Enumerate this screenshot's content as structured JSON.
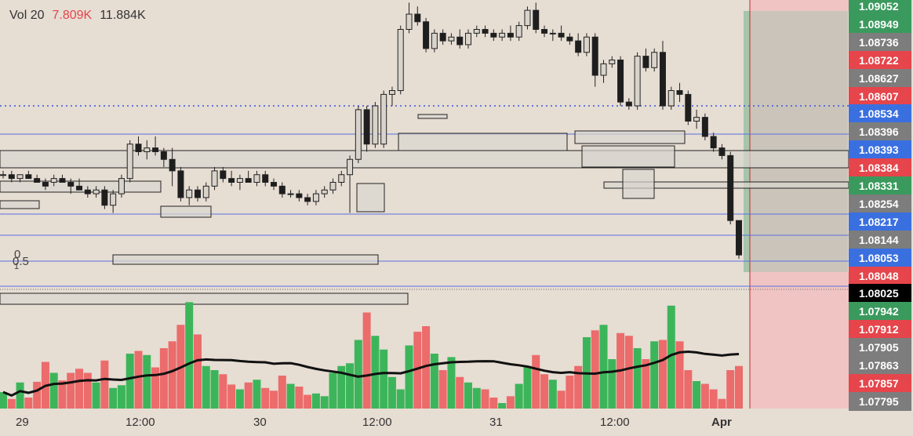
{
  "legend": {
    "name": "Vol 20",
    "v1": "7.809K",
    "v2": "11.884K"
  },
  "fib": {
    "a": "0",
    "b": "0.5",
    "c": "1"
  },
  "colors": {
    "up": "#3cb55a",
    "down": "#ec6b6b",
    "bg": "#e6ddd3"
  },
  "price_labels": [
    {
      "text": "1.09052",
      "color": "#3a9a5d"
    },
    {
      "text": "1.08949",
      "color": "#3a9a5d"
    },
    {
      "text": "1.08736",
      "color": "#7d7d7d"
    },
    {
      "text": "1.08722",
      "color": "#e5454b"
    },
    {
      "text": "1.08627",
      "color": "#7d7d7d"
    },
    {
      "text": "1.08607",
      "color": "#e5454b"
    },
    {
      "text": "1.08534",
      "color": "#3a6fe0"
    },
    {
      "text": "1.08396",
      "color": "#7d7d7d"
    },
    {
      "text": "1.08393",
      "color": "#3a6fe0"
    },
    {
      "text": "1.08384",
      "color": "#e5454b"
    },
    {
      "text": "1.08331",
      "color": "#3a9a5d"
    },
    {
      "text": "1.08254",
      "color": "#7d7d7d"
    },
    {
      "text": "1.08217",
      "color": "#3a6fe0"
    },
    {
      "text": "1.08144",
      "color": "#7d7d7d"
    },
    {
      "text": "1.08053",
      "color": "#3a6fe0"
    },
    {
      "text": "1.08048",
      "color": "#e5454b"
    },
    {
      "text": "1.08025",
      "color": "#000000"
    },
    {
      "text": "1.07942",
      "color": "#3a9a5d"
    },
    {
      "text": "1.07912",
      "color": "#e5454b"
    },
    {
      "text": "1.07905",
      "color": "#7d7d7d"
    },
    {
      "text": "1.07863",
      "color": "#7d7d7d"
    },
    {
      "text": "1.07857",
      "color": "#e5454b"
    },
    {
      "text": "1.07795",
      "color": "#7d7d7d"
    }
  ],
  "time_labels": [
    "29",
    "12:00",
    "30",
    "12:00",
    "31",
    "12:00",
    "Apr"
  ],
  "chart_data": {
    "type": "candlestick",
    "series": [
      {
        "name": "Price",
        "candles": [
          [
            1.0812,
            1.0813,
            1.0811,
            1.0812
          ],
          [
            1.0812,
            1.0813,
            1.081,
            1.0811
          ],
          [
            1.0811,
            1.0812,
            1.081,
            1.0812
          ],
          [
            1.0812,
            1.0813,
            1.0811,
            1.0811
          ],
          [
            1.0811,
            1.0812,
            1.081,
            1.081
          ],
          [
            1.081,
            1.0811,
            1.0808,
            1.0809
          ],
          [
            1.081,
            1.0812,
            1.0809,
            1.0811
          ],
          [
            1.0811,
            1.0812,
            1.081,
            1.081
          ],
          [
            1.081,
            1.0811,
            1.0807,
            1.0809
          ],
          [
            1.0809,
            1.0811,
            1.0808,
            1.0808
          ],
          [
            1.0808,
            1.0809,
            1.0806,
            1.0807
          ],
          [
            1.0807,
            1.0809,
            1.0806,
            1.0808
          ],
          [
            1.0808,
            1.0809,
            1.0803,
            1.0804
          ],
          [
            1.0804,
            1.0808,
            1.0802,
            1.0807
          ],
          [
            1.0807,
            1.0812,
            1.0806,
            1.0811
          ],
          [
            1.0811,
            1.0821,
            1.081,
            1.082
          ],
          [
            1.082,
            1.0822,
            1.0817,
            1.0818
          ],
          [
            1.0818,
            1.0821,
            1.0816,
            1.0819
          ],
          [
            1.0819,
            1.0822,
            1.0817,
            1.0818
          ],
          [
            1.0818,
            1.0819,
            1.0814,
            1.0816
          ],
          [
            1.0816,
            1.0819,
            1.0809,
            1.0813
          ],
          [
            1.0813,
            1.0814,
            1.0805,
            1.0806
          ],
          [
            1.0806,
            1.0809,
            1.0804,
            1.0808
          ],
          [
            1.0808,
            1.0809,
            1.0805,
            1.0806
          ],
          [
            1.0806,
            1.081,
            1.0805,
            1.0809
          ],
          [
            1.0809,
            1.0814,
            1.0808,
            1.0813
          ],
          [
            1.0813,
            1.0814,
            1.081,
            1.0811
          ],
          [
            1.0811,
            1.0813,
            1.0809,
            1.081
          ],
          [
            1.081,
            1.0812,
            1.0808,
            1.0811
          ],
          [
            1.0811,
            1.0813,
            1.081,
            1.081
          ],
          [
            1.081,
            1.0813,
            1.0809,
            1.0812
          ],
          [
            1.0812,
            1.0813,
            1.0809,
            1.081
          ],
          [
            1.081,
            1.0811,
            1.0808,
            1.0809
          ],
          [
            1.0809,
            1.081,
            1.0806,
            1.0807
          ],
          [
            1.0807,
            1.0808,
            1.0806,
            1.0807
          ],
          [
            1.0807,
            1.0808,
            1.0805,
            1.0806
          ],
          [
            1.0806,
            1.0807,
            1.0804,
            1.0805
          ],
          [
            1.0805,
            1.0808,
            1.0804,
            1.0807
          ],
          [
            1.0807,
            1.0809,
            1.0806,
            1.0808
          ],
          [
            1.0808,
            1.0811,
            1.0807,
            1.081
          ],
          [
            1.081,
            1.0813,
            1.0809,
            1.0812
          ],
          [
            1.0812,
            1.0817,
            1.0802,
            1.0816
          ],
          [
            1.0816,
            1.083,
            1.0815,
            1.0829
          ],
          [
            1.0829,
            1.083,
            1.0818,
            1.082
          ],
          [
            1.082,
            1.0831,
            1.0819,
            1.083
          ],
          [
            1.082,
            1.0834,
            1.0819,
            1.0833
          ],
          [
            1.0833,
            1.0835,
            1.083,
            1.0834
          ],
          [
            1.0834,
            1.0851,
            1.0833,
            1.085
          ],
          [
            1.085,
            1.0857,
            1.0849,
            1.0854
          ],
          [
            1.0854,
            1.0856,
            1.0851,
            1.0852
          ],
          [
            1.0852,
            1.0853,
            1.0844,
            1.0845
          ],
          [
            1.0845,
            1.085,
            1.0844,
            1.0849
          ],
          [
            1.0849,
            1.085,
            1.0846,
            1.0847
          ],
          [
            1.0847,
            1.0849,
            1.0846,
            1.0848
          ],
          [
            1.0848,
            1.085,
            1.0845,
            1.0846
          ],
          [
            1.0846,
            1.085,
            1.0845,
            1.0849
          ],
          [
            1.0849,
            1.0851,
            1.0848,
            1.085
          ],
          [
            1.085,
            1.0851,
            1.0848,
            1.0849
          ],
          [
            1.0849,
            1.085,
            1.0847,
            1.0848
          ],
          [
            1.0848,
            1.085,
            1.0847,
            1.0849
          ],
          [
            1.0849,
            1.0851,
            1.0847,
            1.0848
          ],
          [
            1.0848,
            1.0852,
            1.0847,
            1.0851
          ],
          [
            1.0851,
            1.0856,
            1.085,
            1.0855
          ],
          [
            1.0855,
            1.0857,
            1.0849,
            1.085
          ],
          [
            1.085,
            1.0851,
            1.0848,
            1.0849
          ],
          [
            1.0849,
            1.085,
            1.0847,
            1.0849
          ],
          [
            1.0849,
            1.0851,
            1.0847,
            1.0848
          ],
          [
            1.0848,
            1.0849,
            1.0846,
            1.0847
          ],
          [
            1.0847,
            1.0849,
            1.0843,
            1.0844
          ],
          [
            1.0844,
            1.0849,
            1.0843,
            1.0848
          ],
          [
            1.0848,
            1.0849,
            1.0835,
            1.0838
          ],
          [
            1.0838,
            1.0842,
            1.0836,
            1.0841
          ],
          [
            1.0841,
            1.0843,
            1.084,
            1.0842
          ],
          [
            1.0842,
            1.0843,
            1.083,
            1.0831
          ],
          [
            1.0831,
            1.0832,
            1.0829,
            1.083
          ],
          [
            1.083,
            1.0844,
            1.0829,
            1.0843
          ],
          [
            1.0843,
            1.0845,
            1.0839,
            1.084
          ],
          [
            1.084,
            1.0845,
            1.0839,
            1.0844
          ],
          [
            1.0844,
            1.0847,
            1.0829,
            1.083
          ],
          [
            1.083,
            1.0835,
            1.0829,
            1.0834
          ],
          [
            1.0834,
            1.0836,
            1.0831,
            1.0833
          ],
          [
            1.0833,
            1.0834,
            1.0825,
            1.0826
          ],
          [
            1.0826,
            1.0829,
            1.0824,
            1.0827
          ],
          [
            1.0827,
            1.0828,
            1.0821,
            1.0822
          ],
          [
            1.0822,
            1.0823,
            1.0818,
            1.0819
          ],
          [
            1.0819,
            1.082,
            1.0816,
            1.0817
          ],
          [
            1.0817,
            1.0818,
            1.0799,
            1.08
          ],
          [
            1.08,
            1.08,
            1.079,
            1.0791
          ]
        ]
      },
      {
        "name": "Volume",
        "values": [
          2.4,
          1.4,
          3.8,
          1.6,
          3.9,
          6.8,
          5.2,
          4.1,
          5.2,
          5.8,
          5.2,
          3.8,
          7.0,
          3.0,
          3.4,
          8.0,
          8.4,
          7.8,
          6.0,
          8.8,
          9.8,
          12.2,
          15.5,
          10.8,
          6.2,
          5.6,
          5.0,
          3.5,
          2.8,
          3.8,
          4.2,
          3.0,
          2.6,
          4.8,
          3.6,
          3.2,
          2.0,
          2.2,
          1.8,
          5.2,
          6.2,
          6.6,
          10.0,
          14.0,
          10.6,
          8.6,
          4.6,
          2.8,
          9.2,
          11.2,
          12.0,
          8.0,
          5.6,
          7.5,
          4.6,
          3.8,
          3.0,
          2.8,
          1.6,
          0.8,
          1.8,
          3.6,
          6.2,
          7.8,
          5.0,
          4.2,
          2.6,
          4.8,
          6.2,
          10.4,
          11.4,
          12.2,
          7.2,
          11.0,
          10.6,
          8.8,
          7.2,
          9.8,
          10.0,
          15.0,
          9.8,
          5.6,
          4.0,
          3.6,
          2.8,
          1.4,
          5.6,
          6.2
        ]
      },
      {
        "name": "MA 20",
        "values": []
      }
    ],
    "ylim": [
      1.07795,
      1.09052
    ]
  }
}
